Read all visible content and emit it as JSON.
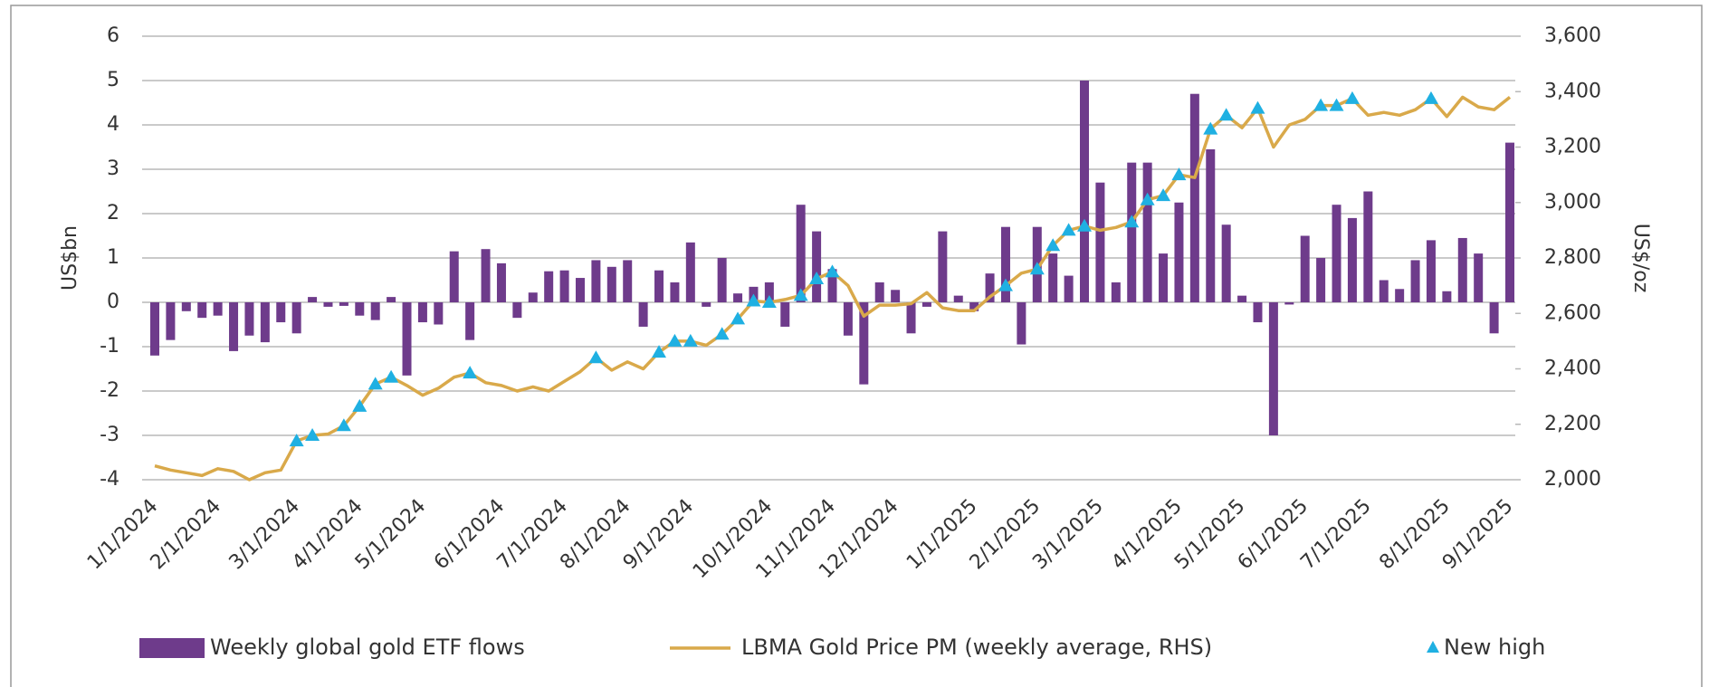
{
  "chart_data": {
    "type": "bar",
    "categories": [
      "1/1/2024",
      null,
      null,
      null,
      "2/1/2024",
      null,
      null,
      null,
      null,
      "3/1/2024",
      null,
      null,
      null,
      "4/1/2024",
      null,
      null,
      null,
      "5/1/2024",
      null,
      null,
      null,
      null,
      "6/1/2024",
      null,
      null,
      null,
      "7/1/2024",
      null,
      null,
      null,
      "8/1/2024",
      null,
      null,
      null,
      "9/1/2024",
      null,
      null,
      null,
      null,
      "10/1/2024",
      null,
      null,
      null,
      "11/1/2024",
      null,
      null,
      null,
      "12/1/2024",
      null,
      null,
      null,
      null,
      "1/1/2025",
      null,
      null,
      null,
      "2/1/2025",
      null,
      null,
      null,
      "3/1/2025",
      null,
      null,
      null,
      null,
      "4/1/2025",
      null,
      null,
      null,
      "5/1/2025",
      null,
      null,
      null,
      "6/1/2025",
      null,
      null,
      null,
      "7/1/2025",
      null,
      null,
      null,
      null,
      "8/1/2025",
      null,
      null,
      null,
      "9/1/2025"
    ],
    "series": [
      {
        "name": "Weekly global gold ETF flows",
        "type": "bar",
        "color": "#6e3b8b",
        "values": [
          -1.2,
          -0.85,
          -0.2,
          -0.35,
          -0.3,
          -1.1,
          -0.75,
          -0.9,
          -0.45,
          -0.7,
          0.12,
          -0.1,
          -0.08,
          -0.3,
          -0.4,
          0.12,
          -1.65,
          -0.45,
          -0.5,
          1.15,
          -0.85,
          1.2,
          0.88,
          -0.35,
          0.22,
          0.7,
          0.72,
          0.55,
          0.95,
          0.8,
          0.95,
          -0.55,
          0.72,
          0.45,
          1.35,
          -0.1,
          1.0,
          0.2,
          0.35,
          0.45,
          -0.55,
          2.2,
          1.6,
          0.75,
          -0.75,
          -1.85,
          0.45,
          0.28,
          -0.7,
          -0.1,
          1.6,
          0.15,
          -0.2,
          0.65,
          1.7,
          -0.95,
          1.7,
          1.1,
          0.6,
          5.0,
          2.7,
          0.45,
          3.15,
          3.15,
          1.1,
          2.25,
          4.7,
          3.45,
          1.75,
          0.15,
          -0.45,
          -3.0,
          -0.05,
          1.5,
          1.0,
          2.2,
          1.9,
          2.5,
          0.5,
          0.3,
          0.95,
          1.4,
          0.25,
          1.45,
          1.1,
          -0.7,
          3.6
        ]
      },
      {
        "name": "LBMA Gold Price PM (weekly average, RHS)",
        "type": "line",
        "axis": "y2",
        "color": "#d9a94a",
        "values": [
          2050,
          2035,
          2025,
          2015,
          2040,
          2030,
          2000,
          2025,
          2035,
          2140,
          2160,
          2165,
          2195,
          2265,
          2345,
          2370,
          2340,
          2305,
          2330,
          2370,
          2385,
          2350,
          2340,
          2320,
          2335,
          2320,
          2355,
          2390,
          2440,
          2395,
          2425,
          2400,
          2460,
          2500,
          2500,
          2485,
          2525,
          2580,
          2645,
          2640,
          2650,
          2665,
          2725,
          2750,
          2700,
          2590,
          2630,
          2630,
          2635,
          2675,
          2620,
          2610,
          2610,
          2660,
          2700,
          2745,
          2760,
          2845,
          2900,
          2915,
          2900,
          2910,
          2930,
          3010,
          3025,
          3100,
          3090,
          3265,
          3315,
          3270,
          3340,
          3200,
          3280,
          3300,
          3350,
          3350,
          3375,
          3315,
          3325,
          3315,
          3335,
          3375,
          3310,
          3380,
          3345,
          3335,
          3380
        ]
      },
      {
        "name": "New high",
        "type": "scatter",
        "axis": "y2",
        "marker": "triangle",
        "color": "#1fb0e2",
        "values": [
          null,
          null,
          null,
          null,
          null,
          null,
          null,
          null,
          null,
          2140,
          2160,
          null,
          2195,
          2265,
          2345,
          2370,
          null,
          null,
          null,
          null,
          2385,
          null,
          null,
          null,
          null,
          null,
          null,
          null,
          2440,
          null,
          null,
          null,
          2460,
          2500,
          2500,
          null,
          2525,
          2580,
          2645,
          2640,
          null,
          2665,
          2725,
          2750,
          null,
          null,
          null,
          null,
          null,
          null,
          null,
          null,
          null,
          null,
          2700,
          null,
          2760,
          2845,
          2900,
          2915,
          null,
          null,
          2930,
          3010,
          3025,
          3100,
          null,
          3265,
          3315,
          null,
          3340,
          null,
          null,
          null,
          3350,
          3350,
          3375,
          null,
          null,
          null,
          null,
          3375,
          null,
          null,
          null,
          null,
          null
        ]
      }
    ],
    "ylabel": "US$bn",
    "y2label": "US$/oz",
    "ylim": [
      -4,
      6
    ],
    "yticks": [
      -4,
      -3,
      -2,
      -1,
      0,
      1,
      2,
      3,
      4,
      5,
      6
    ],
    "y2lim": [
      2000,
      3600
    ],
    "y2ticks": [
      {
        "value": 2000,
        "label": "2,000"
      },
      {
        "value": 2200,
        "label": "2,200"
      },
      {
        "value": 2400,
        "label": "2,400"
      },
      {
        "value": 2600,
        "label": "2,600"
      },
      {
        "value": 2800,
        "label": "2,800"
      },
      {
        "value": 3000,
        "label": "3,000"
      },
      {
        "value": 3200,
        "label": "3,200"
      },
      {
        "value": 3400,
        "label": "3,400"
      },
      {
        "value": 3600,
        "label": "3,600"
      }
    ],
    "grid": true,
    "legend": "bottom"
  }
}
